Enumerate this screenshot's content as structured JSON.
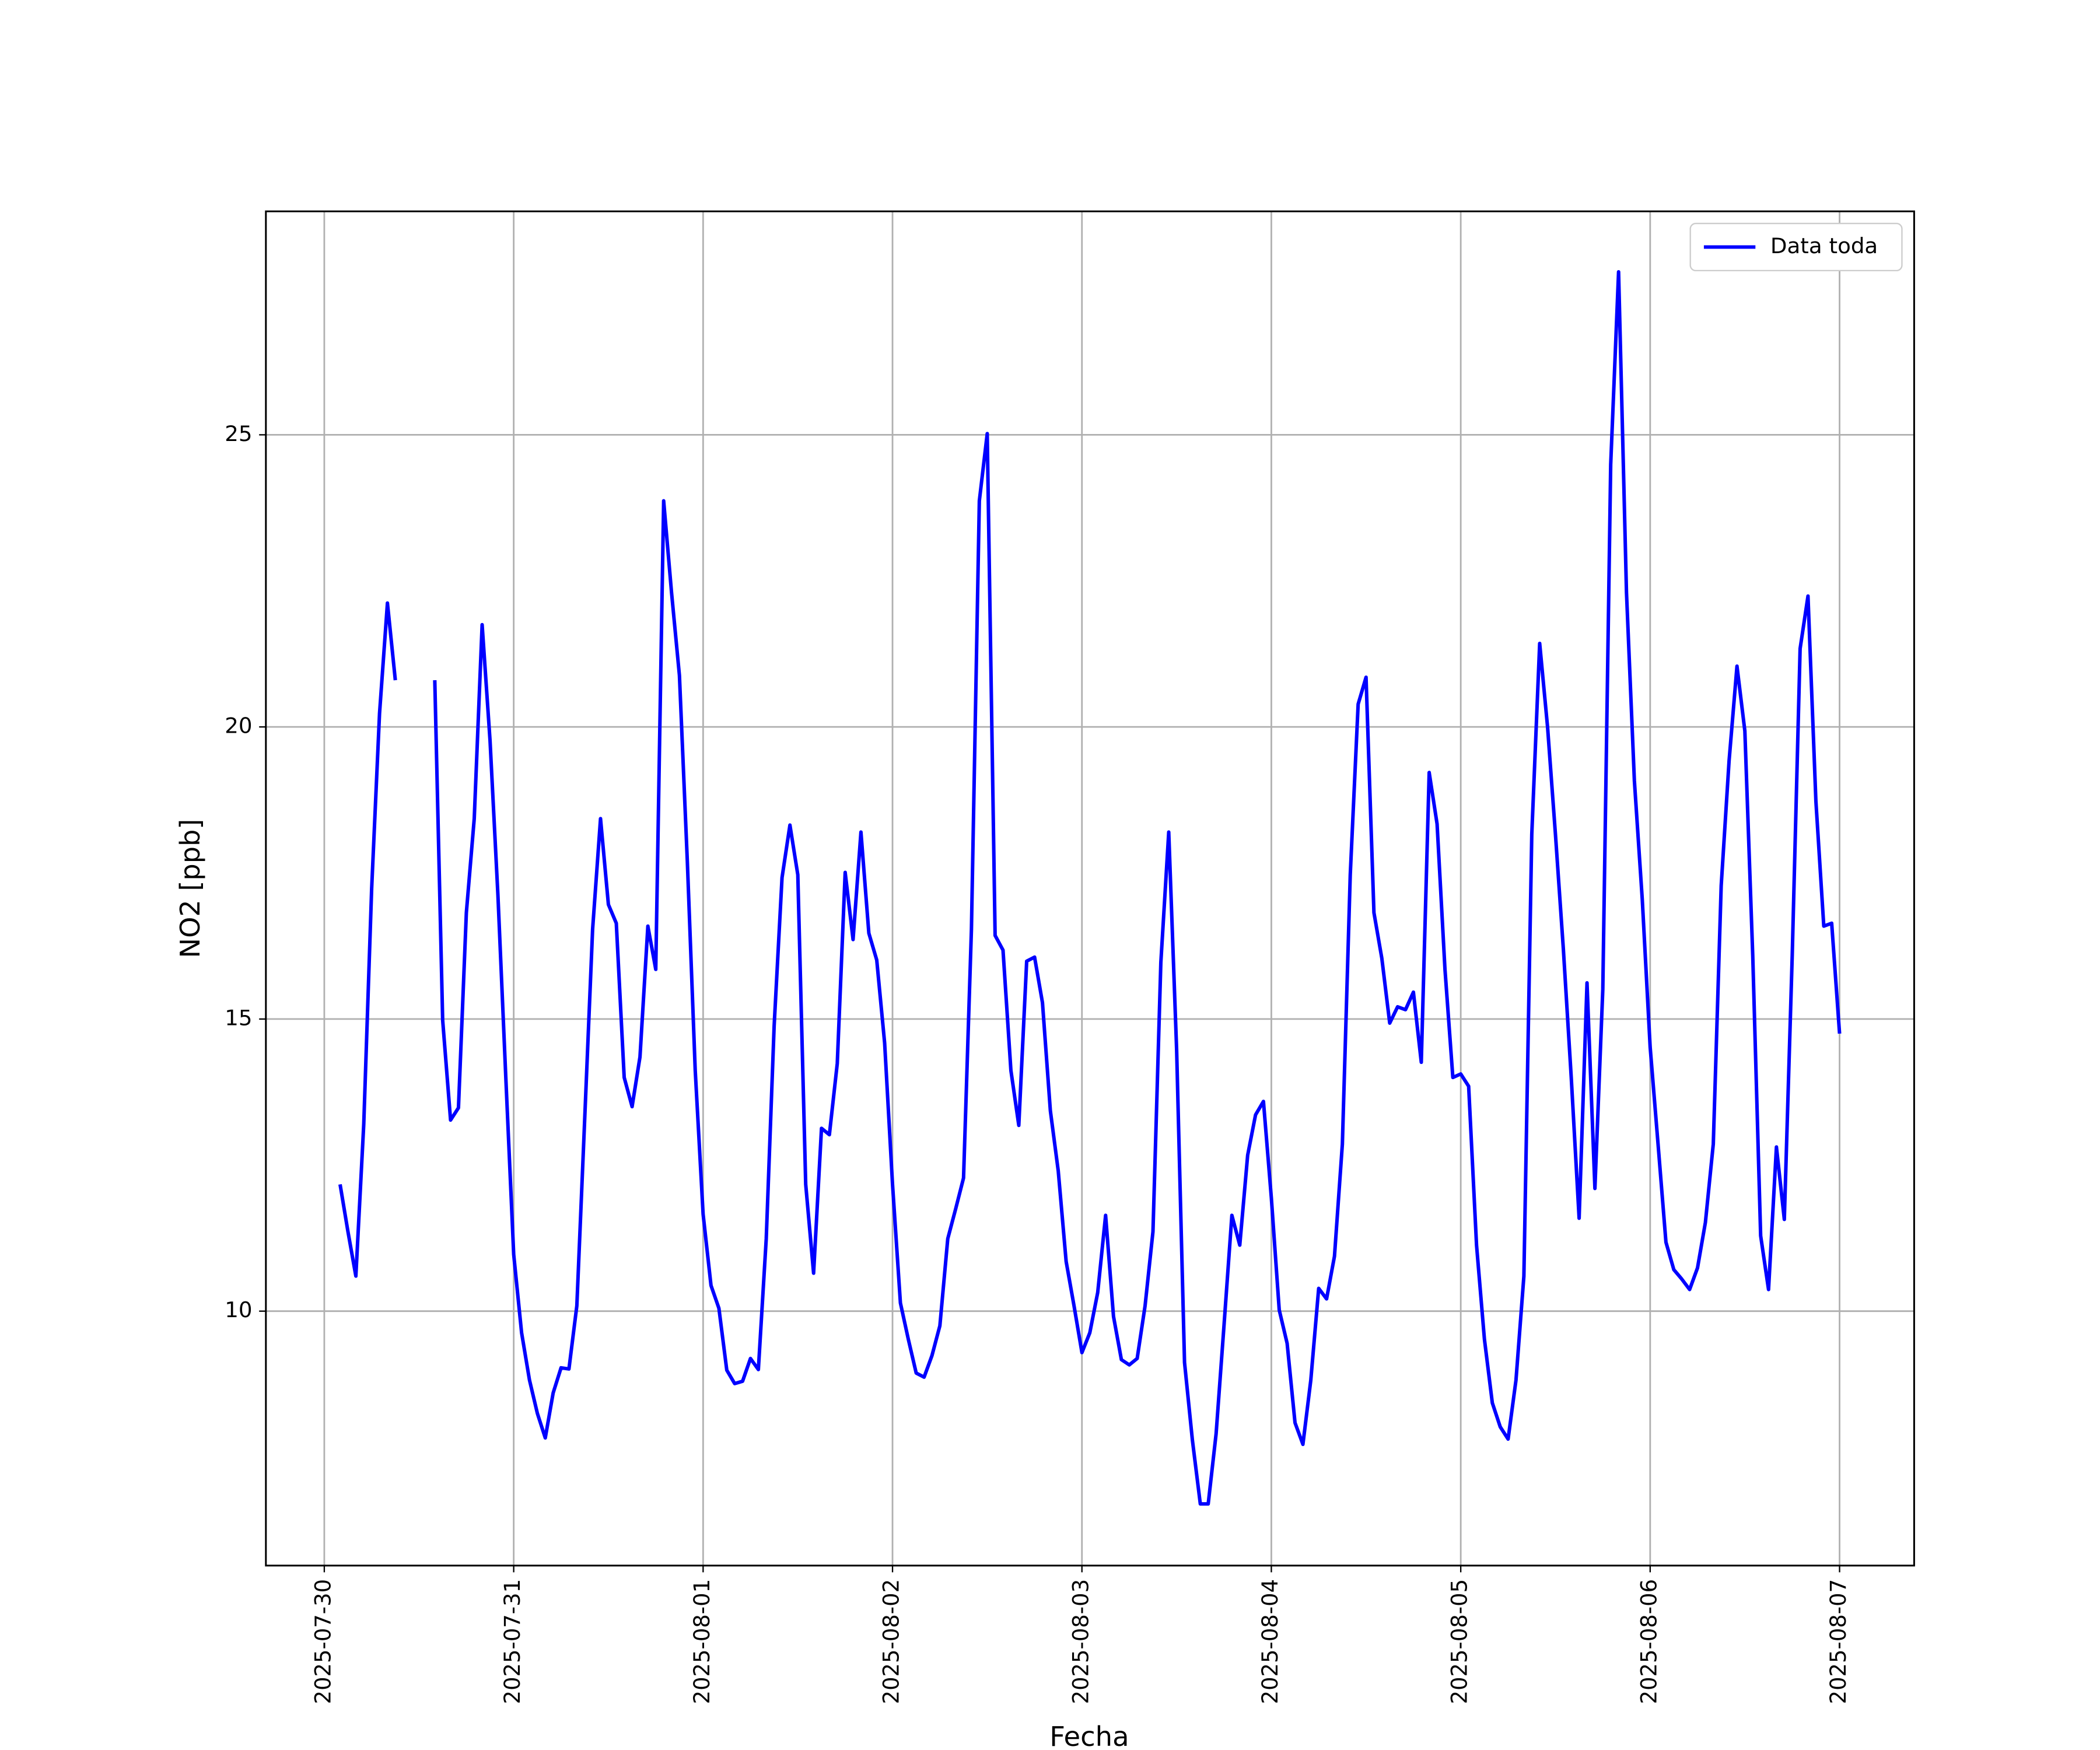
{
  "chart_data": {
    "type": "line",
    "xlabel": "Fecha",
    "ylabel": "NO2 [ppb]",
    "xlim": [
      "2025-07-29 16:36",
      "2025-08-07 09:27"
    ],
    "xticks": [
      "2025-07-30",
      "2025-07-31",
      "2025-08-01",
      "2025-08-02",
      "2025-08-03",
      "2025-08-04",
      "2025-08-05",
      "2025-08-06",
      "2025-08-07"
    ],
    "ylim": [
      5.645,
      28.825
    ],
    "yticks": [
      10,
      15,
      20,
      25
    ],
    "grid": true,
    "legend": "upper right",
    "x": [
      "2025-07-30 02:00",
      "2025-07-30 03:00",
      "2025-07-30 04:00",
      "2025-07-30 05:00",
      "2025-07-30 06:00",
      "2025-07-30 07:00",
      "2025-07-30 08:00",
      "2025-07-30 09:00",
      "2025-07-30 10:00",
      "2025-07-30 11:00",
      "2025-07-30 12:00",
      "2025-07-30 13:00",
      "2025-07-30 14:00",
      "2025-07-30 15:00",
      "2025-07-30 16:00",
      "2025-07-30 17:00",
      "2025-07-30 18:00",
      "2025-07-30 19:00",
      "2025-07-30 20:00",
      "2025-07-30 21:00",
      "2025-07-30 22:00",
      "2025-07-30 23:00",
      "2025-07-31 00:00",
      "2025-07-31 01:00",
      "2025-07-31 02:00",
      "2025-07-31 03:00",
      "2025-07-31 04:00",
      "2025-07-31 05:00",
      "2025-07-31 06:00",
      "2025-07-31 07:00",
      "2025-07-31 08:00",
      "2025-07-31 09:00",
      "2025-07-31 10:00",
      "2025-07-31 11:00",
      "2025-07-31 12:00",
      "2025-07-31 13:00",
      "2025-07-31 14:00",
      "2025-07-31 15:00",
      "2025-07-31 16:00",
      "2025-07-31 17:00",
      "2025-07-31 18:00",
      "2025-07-31 19:00",
      "2025-07-31 20:00",
      "2025-07-31 21:00",
      "2025-07-31 22:00",
      "2025-07-31 23:00",
      "2025-08-01 00:00",
      "2025-08-01 01:00",
      "2025-08-01 02:00",
      "2025-08-01 03:00",
      "2025-08-01 04:00",
      "2025-08-01 05:00",
      "2025-08-01 06:00",
      "2025-08-01 07:00",
      "2025-08-01 08:00",
      "2025-08-01 09:00",
      "2025-08-01 10:00",
      "2025-08-01 11:00",
      "2025-08-01 12:00",
      "2025-08-01 13:00",
      "2025-08-01 14:00",
      "2025-08-01 15:00",
      "2025-08-01 16:00",
      "2025-08-01 17:00",
      "2025-08-01 18:00",
      "2025-08-01 19:00",
      "2025-08-01 20:00",
      "2025-08-01 21:00",
      "2025-08-01 22:00",
      "2025-08-01 23:00",
      "2025-08-02 00:00",
      "2025-08-02 01:00",
      "2025-08-02 02:00",
      "2025-08-02 03:00",
      "2025-08-02 04:00",
      "2025-08-02 05:00",
      "2025-08-02 06:00",
      "2025-08-02 07:00",
      "2025-08-02 08:00",
      "2025-08-02 09:00",
      "2025-08-02 10:00",
      "2025-08-02 11:00",
      "2025-08-02 12:00",
      "2025-08-02 13:00",
      "2025-08-02 14:00",
      "2025-08-02 15:00",
      "2025-08-02 16:00",
      "2025-08-02 17:00",
      "2025-08-02 18:00",
      "2025-08-02 19:00",
      "2025-08-02 20:00",
      "2025-08-02 21:00",
      "2025-08-02 22:00",
      "2025-08-02 23:00",
      "2025-08-03 00:00",
      "2025-08-03 01:00",
      "2025-08-03 02:00",
      "2025-08-03 03:00",
      "2025-08-03 04:00",
      "2025-08-03 05:00",
      "2025-08-03 06:00",
      "2025-08-03 07:00",
      "2025-08-03 08:00",
      "2025-08-03 09:00",
      "2025-08-03 10:00",
      "2025-08-03 11:00",
      "2025-08-03 12:00",
      "2025-08-03 13:00",
      "2025-08-03 14:00",
      "2025-08-03 15:00",
      "2025-08-03 16:00",
      "2025-08-03 17:00",
      "2025-08-03 18:00",
      "2025-08-03 19:00",
      "2025-08-03 20:00",
      "2025-08-03 21:00",
      "2025-08-03 22:00",
      "2025-08-03 23:00",
      "2025-08-04 00:00",
      "2025-08-04 01:00",
      "2025-08-04 02:00",
      "2025-08-04 03:00",
      "2025-08-04 04:00",
      "2025-08-04 05:00",
      "2025-08-04 06:00",
      "2025-08-04 07:00",
      "2025-08-04 08:00",
      "2025-08-04 09:00",
      "2025-08-04 10:00",
      "2025-08-04 11:00",
      "2025-08-04 12:00",
      "2025-08-04 13:00",
      "2025-08-04 14:00",
      "2025-08-04 15:00",
      "2025-08-04 16:00",
      "2025-08-04 17:00",
      "2025-08-04 18:00",
      "2025-08-04 19:00",
      "2025-08-04 20:00",
      "2025-08-04 21:00",
      "2025-08-04 22:00",
      "2025-08-04 23:00",
      "2025-08-05 00:00",
      "2025-08-05 01:00",
      "2025-08-05 02:00",
      "2025-08-05 03:00",
      "2025-08-05 04:00",
      "2025-08-05 05:00",
      "2025-08-05 06:00",
      "2025-08-05 07:00",
      "2025-08-05 08:00",
      "2025-08-05 09:00",
      "2025-08-05 10:00",
      "2025-08-05 11:00",
      "2025-08-05 12:00",
      "2025-08-05 13:00",
      "2025-08-05 14:00",
      "2025-08-05 15:00",
      "2025-08-05 16:00",
      "2025-08-05 17:00",
      "2025-08-05 18:00",
      "2025-08-05 19:00",
      "2025-08-05 20:00",
      "2025-08-05 21:00",
      "2025-08-05 22:00",
      "2025-08-05 23:00",
      "2025-08-06 00:00",
      "2025-08-06 01:00",
      "2025-08-06 02:00",
      "2025-08-06 03:00",
      "2025-08-06 04:00",
      "2025-08-06 05:00",
      "2025-08-06 06:00",
      "2025-08-06 07:00",
      "2025-08-06 08:00",
      "2025-08-06 09:00",
      "2025-08-06 10:00",
      "2025-08-06 11:00",
      "2025-08-06 12:00",
      "2025-08-06 13:00",
      "2025-08-06 14:00",
      "2025-08-06 15:00",
      "2025-08-06 16:00",
      "2025-08-06 17:00",
      "2025-08-06 18:00",
      "2025-08-06 19:00",
      "2025-08-06 20:00",
      "2025-08-06 21:00",
      "2025-08-06 22:00",
      "2025-08-06 23:00",
      "2025-08-07 00:00"
    ],
    "series": [
      {
        "name": "Data toda",
        "color": "#0000ff",
        "values": [
          12.17,
          11.36,
          10.6,
          13.2,
          17.23,
          20.23,
          22.12,
          20.8,
          null,
          null,
          null,
          null,
          20.8,
          14.98,
          13.27,
          13.48,
          16.82,
          18.43,
          21.75,
          19.77,
          17.12,
          14.0,
          10.97,
          9.63,
          8.82,
          8.25,
          7.83,
          8.6,
          9.03,
          9.01,
          10.09,
          13.3,
          16.54,
          18.43,
          16.96,
          16.64,
          14.0,
          13.5,
          14.35,
          16.59,
          15.85,
          23.87,
          22.3,
          20.88,
          17.7,
          14.12,
          11.66,
          10.44,
          10.05,
          8.99,
          8.76,
          8.8,
          9.19,
          9.0,
          11.24,
          14.88,
          17.42,
          18.32,
          17.47,
          12.17,
          10.65,
          13.13,
          13.02,
          14.24,
          17.51,
          16.36,
          18.2,
          16.47,
          16.01,
          14.59,
          12.17,
          10.14,
          9.52,
          8.94,
          8.87,
          9.24,
          9.75,
          11.24,
          11.75,
          12.28,
          16.54,
          23.87,
          25.02,
          16.43,
          16.18,
          14.12,
          13.18,
          15.99,
          16.06,
          15.28,
          13.43,
          12.4,
          10.85,
          10.09,
          9.29,
          9.63,
          10.32,
          11.64,
          9.91,
          9.17,
          9.08,
          9.19,
          10.09,
          11.36,
          15.97,
          18.2,
          14.47,
          9.12,
          7.79,
          6.7,
          6.7,
          7.9,
          9.75,
          11.64,
          11.13,
          12.67,
          13.36,
          13.59,
          11.94,
          10.02,
          9.45,
          8.09,
          7.72,
          8.82,
          10.39,
          10.21,
          10.94,
          12.86,
          17.47,
          20.39,
          20.85,
          16.82,
          16.04,
          14.93,
          15.21,
          15.16,
          15.46,
          14.26,
          19.22,
          18.34,
          15.85,
          14.0,
          14.06,
          13.85,
          11.13,
          9.52,
          8.43,
          8.02,
          7.81,
          8.82,
          10.6,
          18.16,
          21.43,
          20.0,
          18.16,
          16.2,
          14.0,
          11.59,
          15.62,
          12.1,
          15.51,
          24.49,
          27.79,
          22.3,
          19.08,
          17.05,
          14.52,
          12.86,
          11.18,
          10.71,
          10.55,
          10.37,
          10.74,
          11.52,
          12.86,
          17.28,
          19.42,
          21.04,
          19.93,
          16.08,
          11.29,
          10.37,
          12.81,
          11.57,
          16.08,
          21.34,
          22.24,
          18.73,
          16.59,
          16.64,
          14.75
        ]
      }
    ]
  }
}
